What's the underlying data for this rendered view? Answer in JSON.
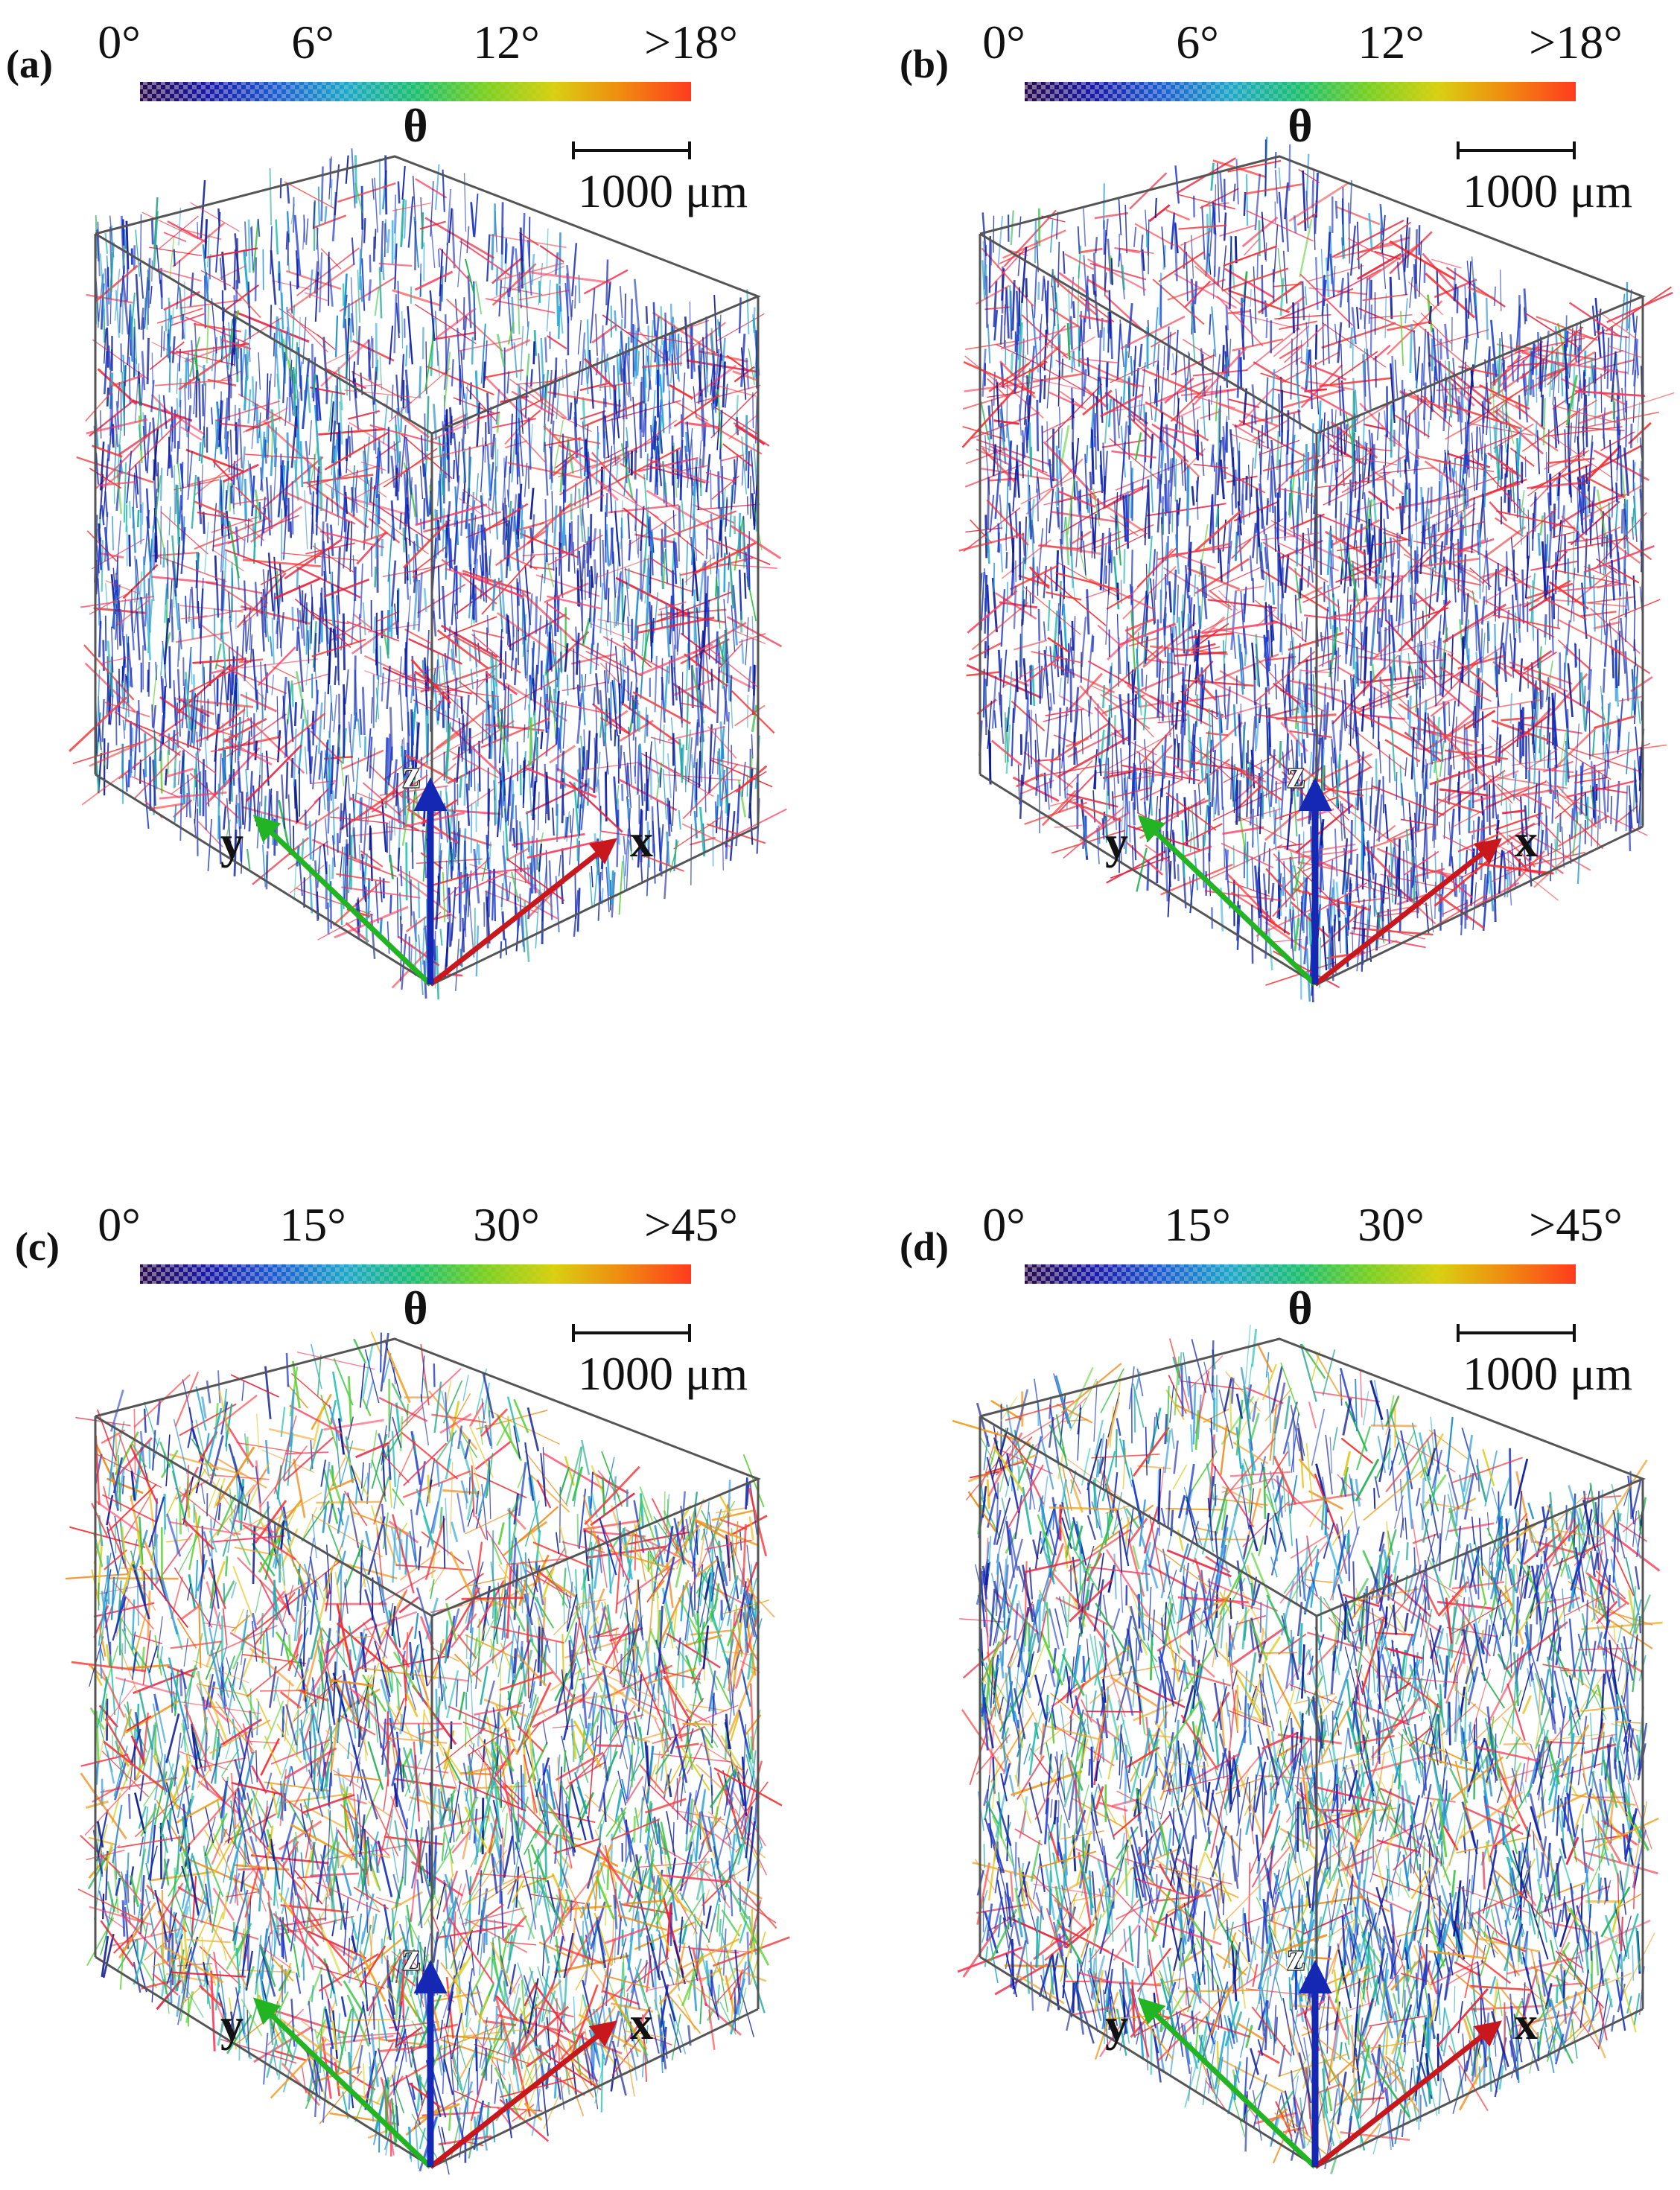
{
  "colormap_stops": [
    "#2a0a4a",
    "#1a1aa8",
    "#1e5fd0",
    "#1fa8c8",
    "#1ec070",
    "#7ad020",
    "#d8d010",
    "#f08a10",
    "#ff3b1e"
  ],
  "axis_colors": {
    "x": "#c8181e",
    "y": "#22b422",
    "z": "#1428b4"
  },
  "box_color": "#555555",
  "panels": [
    {
      "label": "(a)",
      "colorbar_ticks": [
        "0°",
        "6°",
        "12°",
        ">18°"
      ],
      "colorbar_title": "θ",
      "scalebar_text": "1000 μm",
      "axes": {
        "x": "x",
        "y": "y",
        "z": "z"
      },
      "fiber_mix": {
        "blue": 0.56,
        "cyan": 0.17,
        "teal": 0.06,
        "green": 0.03,
        "yellow": 0.0,
        "orange": 0.0,
        "red": 0.18
      }
    },
    {
      "label": "(b)",
      "colorbar_ticks": [
        "0°",
        "6°",
        "12°",
        ">18°"
      ],
      "colorbar_title": "θ",
      "scalebar_text": "1000 μm",
      "axes": {
        "x": "x",
        "y": "y",
        "z": "z"
      },
      "fiber_mix": {
        "blue": 0.58,
        "cyan": 0.1,
        "teal": 0.05,
        "green": 0.02,
        "yellow": 0.0,
        "orange": 0.0,
        "red": 0.25
      }
    },
    {
      "label": "(c)",
      "colorbar_ticks": [
        "0°",
        "15°",
        "30°",
        ">45°"
      ],
      "colorbar_title": "θ",
      "scalebar_text": "1000 μm",
      "axes": {
        "x": "x",
        "y": "y",
        "z": "z"
      },
      "fiber_mix": {
        "blue": 0.26,
        "cyan": 0.14,
        "teal": 0.12,
        "green": 0.14,
        "yellow": 0.07,
        "orange": 0.09,
        "red": 0.18
      }
    },
    {
      "label": "(d)",
      "colorbar_ticks": [
        "0°",
        "15°",
        "30°",
        ">45°"
      ],
      "colorbar_title": "θ",
      "scalebar_text": "1000 μm",
      "axes": {
        "x": "x",
        "y": "y",
        "z": "z"
      },
      "fiber_mix": {
        "blue": 0.38,
        "cyan": 0.16,
        "teal": 0.12,
        "green": 0.1,
        "yellow": 0.05,
        "orange": 0.07,
        "red": 0.12
      }
    }
  ]
}
